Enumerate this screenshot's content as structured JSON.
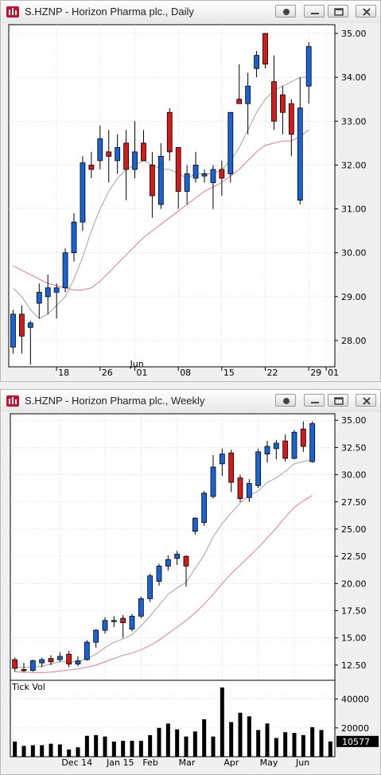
{
  "windows": [
    {
      "title": "S.HZNP - Horizon Pharma plc., Daily",
      "buttons": [
        "record",
        "minimize",
        "restore",
        "close"
      ]
    },
    {
      "title": "S.HZNP - Horizon Pharma plc., Weekly",
      "buttons": [
        "record",
        "minimize",
        "restore",
        "close"
      ]
    }
  ],
  "colors": {
    "up": "#1a63d6",
    "down": "#d61a1a",
    "fast_ma": "#9aa79a",
    "slow_ma": "#e07a9a",
    "grid": "#c8c8c8",
    "volume": "#000000"
  },
  "chart_data": [
    {
      "type": "candlestick",
      "title": "S.HZNP - Horizon Pharma plc., Daily",
      "ylim": [
        27.4,
        35.2
      ],
      "y_ticks": [
        28.0,
        29.0,
        30.0,
        31.0,
        32.0,
        33.0,
        34.0,
        35.0
      ],
      "y_tick_labels": [
        "28.00",
        "29.00",
        "30.00",
        "31.00",
        "32.00",
        "33.00",
        "34.00",
        "35.00"
      ],
      "x_labels": [
        {
          "bar": 5,
          "text": "18"
        },
        {
          "bar": 10,
          "text": "26"
        },
        {
          "bar": 14,
          "text": "01",
          "upper": "Jun"
        },
        {
          "bar": 19,
          "text": "08"
        },
        {
          "bar": 24,
          "text": "15"
        },
        {
          "bar": 29,
          "text": "22"
        },
        {
          "bar": 34,
          "text": "29"
        },
        {
          "bar": 36,
          "text": "01"
        }
      ],
      "grid": true,
      "candles": [
        {
          "o": 27.85,
          "h": 28.7,
          "l": 27.7,
          "c": 28.6
        },
        {
          "o": 28.6,
          "h": 28.8,
          "l": 27.7,
          "c": 28.1
        },
        {
          "o": 28.3,
          "h": 28.45,
          "l": 27.45,
          "c": 28.4
        },
        {
          "o": 28.85,
          "h": 29.3,
          "l": 28.5,
          "c": 29.1
        },
        {
          "o": 29.0,
          "h": 29.5,
          "l": 28.6,
          "c": 29.2
        },
        {
          "o": 29.1,
          "h": 29.3,
          "l": 28.5,
          "c": 29.2
        },
        {
          "o": 29.2,
          "h": 30.1,
          "l": 29.1,
          "c": 30.0
        },
        {
          "o": 30.0,
          "h": 30.9,
          "l": 29.8,
          "c": 30.7
        },
        {
          "o": 30.7,
          "h": 32.2,
          "l": 30.5,
          "c": 32.05
        },
        {
          "o": 32.0,
          "h": 32.3,
          "l": 31.7,
          "c": 31.9
        },
        {
          "o": 32.1,
          "h": 32.9,
          "l": 31.9,
          "c": 32.6
        },
        {
          "o": 32.3,
          "h": 32.8,
          "l": 31.6,
          "c": 32.2
        },
        {
          "o": 32.1,
          "h": 32.7,
          "l": 31.8,
          "c": 32.4
        },
        {
          "o": 32.5,
          "h": 32.8,
          "l": 31.2,
          "c": 31.9
        },
        {
          "o": 31.9,
          "h": 33.0,
          "l": 31.7,
          "c": 32.3
        },
        {
          "o": 32.5,
          "h": 32.8,
          "l": 32.1,
          "c": 32.1
        },
        {
          "o": 32.0,
          "h": 32.3,
          "l": 30.8,
          "c": 31.3
        },
        {
          "o": 31.1,
          "h": 32.5,
          "l": 31.0,
          "c": 32.2
        },
        {
          "o": 33.2,
          "h": 33.3,
          "l": 32.1,
          "c": 32.3
        },
        {
          "o": 32.4,
          "h": 32.4,
          "l": 31.0,
          "c": 31.4
        },
        {
          "o": 31.4,
          "h": 32.0,
          "l": 31.1,
          "c": 31.8
        },
        {
          "o": 31.7,
          "h": 32.3,
          "l": 31.6,
          "c": 32.0
        },
        {
          "o": 31.75,
          "h": 31.9,
          "l": 31.6,
          "c": 31.8
        },
        {
          "o": 31.6,
          "h": 32.0,
          "l": 31.0,
          "c": 31.9
        },
        {
          "o": 31.9,
          "h": 32.1,
          "l": 31.3,
          "c": 31.7
        },
        {
          "o": 31.8,
          "h": 33.2,
          "l": 31.6,
          "c": 33.2
        },
        {
          "o": 33.5,
          "h": 34.3,
          "l": 33.4,
          "c": 33.4
        },
        {
          "o": 33.4,
          "h": 34.1,
          "l": 32.7,
          "c": 33.8
        },
        {
          "o": 34.2,
          "h": 34.6,
          "l": 34.0,
          "c": 34.5
        },
        {
          "o": 35.0,
          "h": 35.0,
          "l": 34.2,
          "c": 34.3
        },
        {
          "o": 33.9,
          "h": 34.5,
          "l": 32.8,
          "c": 33.0
        },
        {
          "o": 33.6,
          "h": 33.8,
          "l": 32.7,
          "c": 33.2
        },
        {
          "o": 33.4,
          "h": 33.5,
          "l": 32.2,
          "c": 32.7
        },
        {
          "o": 31.2,
          "h": 34.0,
          "l": 31.1,
          "c": 33.3
        },
        {
          "o": 33.8,
          "h": 34.8,
          "l": 33.4,
          "c": 34.7
        }
      ],
      "ma_fast": [
        29.2,
        29.0,
        28.7,
        28.5,
        28.6,
        28.8,
        29.0,
        29.4,
        29.9,
        30.5,
        31.0,
        31.4,
        31.7,
        31.9,
        32.0,
        32.1,
        32.0,
        31.9,
        31.9,
        31.8,
        31.7,
        31.8,
        31.8,
        31.8,
        31.9,
        32.1,
        32.4,
        32.8,
        33.2,
        33.5,
        33.7,
        33.8,
        33.9,
        34.0,
        34.0
      ],
      "ma_slow": [
        29.7,
        29.6,
        29.5,
        29.4,
        29.3,
        29.25,
        29.2,
        29.15,
        29.15,
        29.2,
        29.35,
        29.55,
        29.75,
        29.95,
        30.15,
        30.35,
        30.5,
        30.65,
        30.8,
        30.95,
        31.1,
        31.25,
        31.4,
        31.5,
        31.6,
        31.75,
        31.9,
        32.1,
        32.3,
        32.45,
        32.5,
        32.55,
        32.55,
        32.65,
        32.8
      ]
    },
    {
      "type": "candlestick",
      "title": "S.HZNP - Horizon Pharma plc., Weekly",
      "ylim": [
        11.1,
        35.6
      ],
      "y_ticks": [
        12.5,
        15.0,
        17.5,
        20.0,
        22.5,
        25.0,
        27.5,
        30.0,
        32.5,
        35.0
      ],
      "y_tick_labels": [
        "12.50",
        "15.00",
        "17.50",
        "20.00",
        "22.50",
        "25.00",
        "27.50",
        "30.00",
        "32.50",
        "35.00"
      ],
      "x_labels": [
        {
          "bar": 5,
          "text": "Dec 14"
        },
        {
          "bar": 10,
          "text": "Jan 15"
        },
        {
          "bar": 14,
          "text": "Feb"
        },
        {
          "bar": 18,
          "text": "Mar"
        },
        {
          "bar": 23,
          "text": "Apr"
        },
        {
          "bar": 27,
          "text": "May"
        },
        {
          "bar": 31,
          "text": "Jun"
        }
      ],
      "grid": true,
      "candles": [
        {
          "o": 13.0,
          "h": 13.2,
          "l": 11.9,
          "c": 12.2
        },
        {
          "o": 12.1,
          "h": 12.7,
          "l": 11.8,
          "c": 12.0
        },
        {
          "o": 12.0,
          "h": 13.0,
          "l": 11.9,
          "c": 12.9
        },
        {
          "o": 12.7,
          "h": 13.2,
          "l": 12.3,
          "c": 13.0
        },
        {
          "o": 13.1,
          "h": 13.4,
          "l": 12.5,
          "c": 12.8
        },
        {
          "o": 13.0,
          "h": 13.7,
          "l": 12.8,
          "c": 13.3
        },
        {
          "o": 13.5,
          "h": 13.8,
          "l": 12.3,
          "c": 12.6
        },
        {
          "o": 12.6,
          "h": 13.3,
          "l": 12.4,
          "c": 12.9
        },
        {
          "o": 13.0,
          "h": 14.8,
          "l": 12.9,
          "c": 14.6
        },
        {
          "o": 14.6,
          "h": 15.8,
          "l": 14.1,
          "c": 15.7
        },
        {
          "o": 15.7,
          "h": 16.9,
          "l": 15.4,
          "c": 16.6
        },
        {
          "o": 16.5,
          "h": 17.0,
          "l": 16.0,
          "c": 16.6
        },
        {
          "o": 16.8,
          "h": 17.1,
          "l": 15.0,
          "c": 16.4
        },
        {
          "o": 15.8,
          "h": 17.2,
          "l": 15.6,
          "c": 17.0
        },
        {
          "o": 17.0,
          "h": 18.8,
          "l": 16.8,
          "c": 18.6
        },
        {
          "o": 18.6,
          "h": 20.9,
          "l": 18.3,
          "c": 20.7
        },
        {
          "o": 20.2,
          "h": 21.8,
          "l": 19.8,
          "c": 21.6
        },
        {
          "o": 21.6,
          "h": 22.6,
          "l": 21.2,
          "c": 22.2
        },
        {
          "o": 22.3,
          "h": 23.0,
          "l": 21.7,
          "c": 22.7
        },
        {
          "o": 22.5,
          "h": 22.6,
          "l": 19.7,
          "c": 21.6
        },
        {
          "o": 24.8,
          "h": 26.1,
          "l": 24.5,
          "c": 26.0
        },
        {
          "o": 25.6,
          "h": 28.5,
          "l": 25.3,
          "c": 28.3
        },
        {
          "o": 28.0,
          "h": 31.8,
          "l": 27.8,
          "c": 30.7
        },
        {
          "o": 31.0,
          "h": 32.4,
          "l": 29.9,
          "c": 31.9
        },
        {
          "o": 32.0,
          "h": 32.3,
          "l": 28.4,
          "c": 29.3
        },
        {
          "o": 29.7,
          "h": 30.0,
          "l": 27.5,
          "c": 27.8
        },
        {
          "o": 27.9,
          "h": 29.6,
          "l": 27.5,
          "c": 29.2
        },
        {
          "o": 29.0,
          "h": 32.4,
          "l": 28.8,
          "c": 32.1
        },
        {
          "o": 31.9,
          "h": 33.1,
          "l": 31.1,
          "c": 32.6
        },
        {
          "o": 32.4,
          "h": 33.2,
          "l": 31.4,
          "c": 32.9
        },
        {
          "o": 33.1,
          "h": 33.7,
          "l": 31.2,
          "c": 31.5
        },
        {
          "o": 31.5,
          "h": 34.1,
          "l": 31.4,
          "c": 33.9
        },
        {
          "o": 34.2,
          "h": 34.9,
          "l": 32.1,
          "c": 32.6
        },
        {
          "o": 31.2,
          "h": 34.9,
          "l": 31.1,
          "c": 34.7
        }
      ],
      "ma_fast": [
        12.3,
        12.3,
        12.3,
        12.4,
        12.6,
        12.8,
        12.8,
        12.8,
        13.1,
        13.5,
        14.1,
        14.6,
        14.9,
        15.3,
        16.1,
        17.0,
        18.0,
        19.0,
        19.6,
        20.1,
        21.4,
        22.6,
        24.3,
        25.5,
        26.5,
        27.4,
        28.1,
        28.5,
        29.3,
        29.7,
        30.3,
        31.0,
        31.2,
        31.4
      ],
      "ma_slow": [
        11.9,
        11.85,
        11.8,
        11.8,
        11.85,
        11.95,
        12.05,
        12.15,
        12.3,
        12.5,
        12.8,
        13.1,
        13.4,
        13.6,
        13.9,
        14.3,
        14.8,
        15.4,
        16.0,
        16.6,
        17.3,
        18.1,
        19.0,
        20.0,
        20.9,
        21.7,
        22.5,
        23.3,
        24.2,
        25.1,
        26.1,
        27.0,
        27.6,
        28.1
      ]
    },
    {
      "type": "bar",
      "title": "Tick Vol",
      "ylim": [
        0,
        53000
      ],
      "y_ticks": [
        20000,
        40000
      ],
      "y_tick_labels": [
        "20000",
        "40000"
      ],
      "last_value_label": "10577",
      "values": [
        10500,
        7500,
        8000,
        8000,
        9000,
        8500,
        5000,
        6500,
        14500,
        15000,
        14000,
        10500,
        11000,
        11000,
        11000,
        15000,
        20000,
        23000,
        19000,
        14000,
        17500,
        26000,
        14000,
        48000,
        24000,
        30500,
        28000,
        18500,
        23000,
        13000,
        17000,
        16500,
        15000,
        20500,
        18500,
        10577
      ]
    }
  ]
}
